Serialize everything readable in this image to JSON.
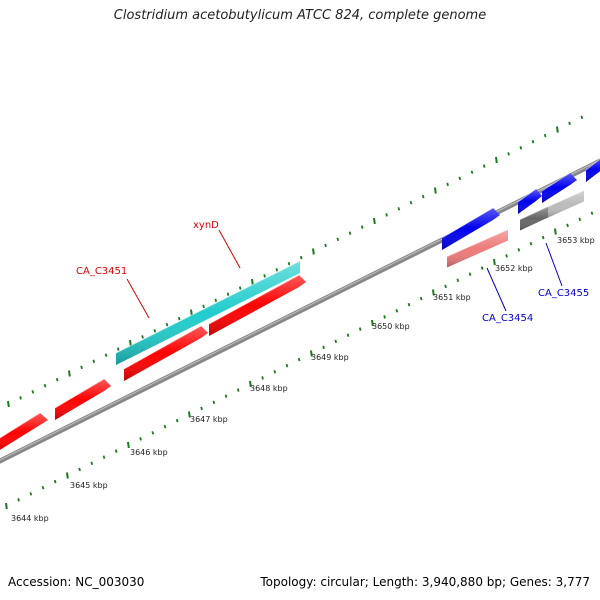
{
  "title": "Clostridium acetobutylicum ATCC 824, complete genome",
  "footer": {
    "accession": "Accession: NC_003030",
    "stats": "Topology: circular; Length: 3,940,880 bp; Genes: 3,777"
  },
  "colors": {
    "backbone": "#888888",
    "tick": "#1b7a1b",
    "red_gene": "#ff0000",
    "cyan_gene": "#22cccc",
    "blue_gene": "#0000ee",
    "pink_gene": "#ee7a7a",
    "grey_gene": "#bbbbbb",
    "dark_gene": "#666666",
    "red_label": "#dd0000",
    "blue_label": "#0000cc"
  },
  "scale_labels": [
    {
      "kbp": 3644,
      "text": "3644 kbp"
    },
    {
      "kbp": 3645,
      "text": "3645 kbp"
    },
    {
      "kbp": 3646,
      "text": "3646 kbp"
    },
    {
      "kbp": 3647,
      "text": "3647 kbp"
    },
    {
      "kbp": 3648,
      "text": "3648 kbp"
    },
    {
      "kbp": 3649,
      "text": "3649 kbp"
    },
    {
      "kbp": 3650,
      "text": "3650 kbp"
    },
    {
      "kbp": 3651,
      "text": "3651 kbp"
    },
    {
      "kbp": 3652,
      "text": "3652 kbp"
    },
    {
      "kbp": 3653,
      "text": "3653 kbp"
    }
  ],
  "genes": [
    {
      "name": "gene-forward-1",
      "color": "red_gene"
    },
    {
      "name": "gene-forward-2",
      "color": "red_gene"
    },
    {
      "name": "gene-forward-3",
      "color": "red_gene"
    },
    {
      "name": "gene-forward-4",
      "color": "red_gene"
    },
    {
      "name": "gene-xynD",
      "color": "cyan_gene"
    },
    {
      "name": "gene-reverse-blue-1",
      "color": "blue_gene"
    },
    {
      "name": "gene-reverse-blue-2",
      "color": "blue_gene"
    },
    {
      "name": "gene-reverse-blue-3",
      "color": "blue_gene"
    },
    {
      "name": "gene-reverse-blue-4",
      "color": "blue_gene"
    },
    {
      "name": "gene-CA_C3454",
      "color": "pink_gene"
    },
    {
      "name": "gene-CA_C3455",
      "color": "grey_gene"
    },
    {
      "name": "gene-dark",
      "color": "dark_gene"
    }
  ],
  "gene_labels": [
    {
      "text": "xynD",
      "color": "red_label"
    },
    {
      "text": "CA_C3451",
      "color": "red_label"
    },
    {
      "text": "CA_C3454",
      "color": "blue_label"
    },
    {
      "text": "CA_C3455",
      "color": "blue_label"
    }
  ]
}
